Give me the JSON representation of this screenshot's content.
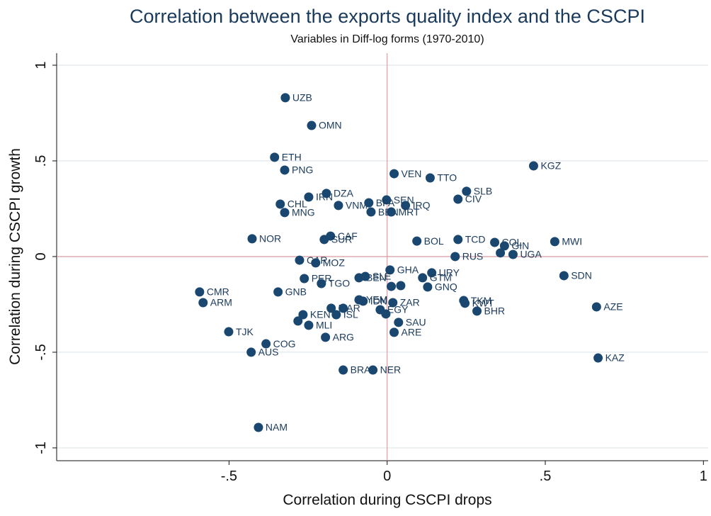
{
  "chart_data": {
    "type": "scatter",
    "title": "Correlation between the exports quality index and the CSCPI",
    "subtitle": "Variables in Diff-log forms (1970-2010)",
    "x_label": "Correlation during CSCPI drops",
    "y_label": "Correlation during CSCPI growth",
    "xlim": [
      -1.045,
      1.015
    ],
    "ylim": [
      -1.067,
      1.063
    ],
    "xticks": [
      {
        "value": -0.5,
        "label": "-.5"
      },
      0,
      {
        "value": 0.5,
        "label": ".5"
      },
      1
    ],
    "yticks": [
      -1,
      {
        "value": -0.5,
        "label": "-.5"
      },
      0,
      {
        "value": 0.5,
        "label": ".5"
      },
      1
    ],
    "grid": true,
    "reference_lines": {
      "x": 0,
      "y": 0,
      "color": "#d98c8c"
    },
    "color": "#1a476f",
    "labels": [
      "UZB",
      "OMN",
      "ETH",
      "PNG",
      "VEN",
      "TTO",
      "KGZ",
      "SLB",
      "CIV",
      "IRN",
      "DZA",
      "SEN",
      "CHL",
      "VNM",
      "BFA",
      "IRQ",
      "MNG",
      "BEN",
      "MRT",
      "NOR",
      "CAF",
      "SUR",
      "BOL",
      "TCD",
      "COL",
      "GIN",
      null,
      "UGA",
      "MWI",
      "RUS",
      "CAR",
      "MOZ",
      "GHA",
      "URY",
      "SDN",
      "PER",
      "BEN",
      "SLE",
      "GTM",
      "TGO",
      null,
      null,
      "GNQ",
      "GNB",
      "CMR",
      "ARM",
      "YEM",
      "IDN",
      "ZAR",
      "TKM",
      "KWT",
      "BHR",
      "AZE",
      "MAR",
      null,
      "ISL",
      "EGY",
      null,
      "SAU",
      "KEN",
      null,
      "MLI",
      "ARG",
      "ARE",
      "TJK",
      "COG",
      "AUS",
      "KAZ",
      "BRA",
      "NER",
      "NAM"
    ],
    "x": [
      -0.322,
      -0.239,
      -0.356,
      -0.324,
      0.022,
      0.136,
      0.463,
      0.251,
      0.224,
      -0.248,
      -0.192,
      -0.002,
      -0.338,
      -0.154,
      -0.058,
      0.058,
      -0.324,
      -0.051,
      0.013,
      -0.427,
      -0.179,
      -0.199,
      0.094,
      0.224,
      0.34,
      0.371,
      0.358,
      0.398,
      0.53,
      0.215,
      -0.277,
      -0.226,
      0.009,
      0.141,
      0.559,
      -0.262,
      -0.089,
      -0.069,
      0.112,
      -0.208,
      0.013,
      0.043,
      0.128,
      -0.345,
      -0.593,
      -0.582,
      -0.089,
      -0.076,
      0.018,
      0.242,
      0.246,
      0.284,
      0.662,
      -0.177,
      -0.139,
      -0.161,
      -0.022,
      -0.004,
      0.036,
      -0.266,
      -0.282,
      -0.248,
      -0.195,
      0.022,
      -0.501,
      -0.383,
      -0.43,
      0.667,
      -0.139,
      -0.045,
      -0.407
    ],
    "values": [
      0.83,
      0.685,
      0.519,
      0.452,
      0.433,
      0.411,
      0.474,
      0.341,
      0.3,
      0.311,
      0.33,
      0.296,
      0.274,
      0.267,
      0.281,
      0.267,
      0.23,
      0.233,
      0.233,
      0.093,
      0.107,
      0.089,
      0.081,
      0.089,
      0.074,
      0.056,
      0.019,
      0.011,
      0.078,
      0.0,
      -0.019,
      -0.033,
      -0.07,
      -0.085,
      -0.1,
      -0.115,
      -0.111,
      -0.104,
      -0.111,
      -0.141,
      -0.156,
      -0.152,
      -0.159,
      -0.185,
      -0.185,
      -0.241,
      -0.226,
      -0.233,
      -0.241,
      -0.23,
      -0.244,
      -0.285,
      -0.263,
      -0.27,
      -0.27,
      -0.304,
      -0.278,
      -0.3,
      -0.344,
      -0.304,
      -0.337,
      -0.359,
      -0.422,
      -0.396,
      -0.393,
      -0.456,
      -0.5,
      -0.53,
      -0.593,
      -0.593,
      -0.893
    ]
  }
}
